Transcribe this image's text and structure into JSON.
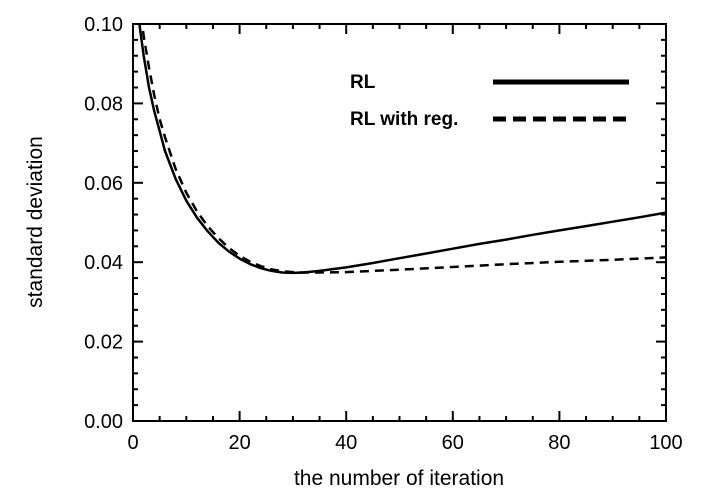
{
  "chart_data": {
    "type": "line",
    "title": "",
    "xlabel": "the number of iteration",
    "ylabel": "standard deviation",
    "xlim": [
      0,
      100
    ],
    "ylim": [
      0,
      0.1
    ],
    "x_ticks": [
      0,
      20,
      40,
      60,
      80,
      100
    ],
    "x_tick_labels": [
      "0",
      "20",
      "40",
      "60",
      "80",
      "100"
    ],
    "y_ticks": [
      0,
      0.02,
      0.04,
      0.06,
      0.08,
      0.1
    ],
    "y_tick_labels": [
      "0.00",
      "0.02",
      "0.04",
      "0.06",
      "0.08",
      "0.10"
    ],
    "grid": false,
    "legend_position": "top-right",
    "series": [
      {
        "name": "RL",
        "style": "solid",
        "color": "#000000",
        "x": [
          1,
          2,
          3,
          4,
          5,
          6,
          8,
          10,
          12,
          14,
          16,
          18,
          20,
          22,
          24,
          26,
          28,
          30,
          32,
          35,
          40,
          45,
          50,
          55,
          60,
          65,
          70,
          75,
          80,
          85,
          90,
          95,
          100
        ],
        "y": [
          0.102,
          0.092,
          0.084,
          0.078,
          0.073,
          0.068,
          0.061,
          0.0555,
          0.0512,
          0.0478,
          0.0449,
          0.0427,
          0.0409,
          0.0395,
          0.0385,
          0.0378,
          0.0374,
          0.0373,
          0.0374,
          0.0378,
          0.0387,
          0.0398,
          0.041,
          0.0422,
          0.0434,
          0.0446,
          0.0457,
          0.0469,
          0.048,
          0.0491,
          0.0502,
          0.0513,
          0.0525
        ]
      },
      {
        "name": "RL with reg.",
        "style": "dashed",
        "color": "#000000",
        "x": [
          1.5,
          2,
          3,
          4,
          5,
          6,
          8,
          10,
          12,
          14,
          16,
          18,
          20,
          22,
          24,
          26,
          28,
          30,
          32,
          35,
          40,
          45,
          50,
          60,
          70,
          80,
          90,
          100
        ],
        "y": [
          0.102,
          0.097,
          0.089,
          0.082,
          0.076,
          0.0715,
          0.0635,
          0.0575,
          0.0528,
          0.0491,
          0.0461,
          0.0436,
          0.0416,
          0.0401,
          0.039,
          0.0382,
          0.0377,
          0.0375,
          0.0374,
          0.0374,
          0.0375,
          0.0378,
          0.0381,
          0.0388,
          0.0395,
          0.0401,
          0.0406,
          0.0412
        ]
      }
    ]
  }
}
